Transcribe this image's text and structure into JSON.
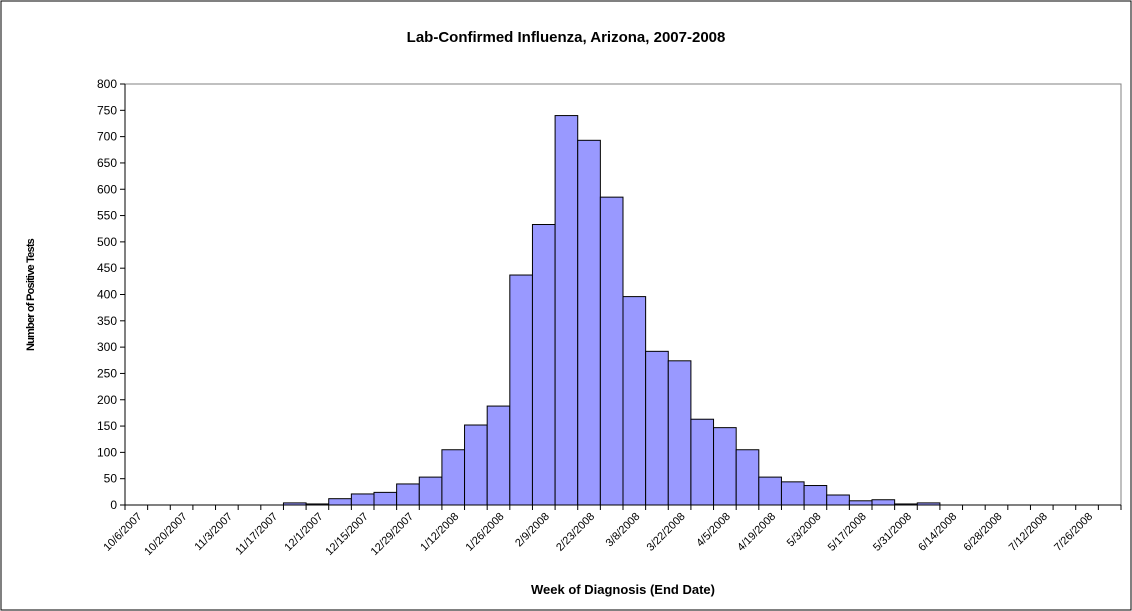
{
  "chart_data": {
    "type": "bar",
    "title": "Lab-Confirmed Influenza, Arizona, 2007-2008",
    "x_label": "Week of Diagnosis (End Date)",
    "y_label": "Number of Positive Tests",
    "categories": [
      "10/6/2007",
      null,
      "10/20/2007",
      null,
      "11/3/2007",
      null,
      "11/17/2007",
      null,
      "12/1/2007",
      null,
      "12/15/2007",
      null,
      "12/29/2007",
      null,
      "1/12/2008",
      null,
      "1/26/2008",
      null,
      "2/9/2008",
      null,
      "2/23/2008",
      null,
      "3/8/2008",
      null,
      "3/22/2008",
      null,
      "4/5/2008",
      null,
      "4/19/2008",
      null,
      "5/3/2008",
      null,
      "5/17/2008",
      null,
      "5/31/2008",
      null,
      "6/14/2008",
      null,
      "6/28/2008",
      null,
      "7/12/2008",
      null,
      "7/26/2008",
      null
    ],
    "values": [
      0,
      0,
      0,
      0,
      0,
      0,
      0,
      4,
      2,
      12,
      21,
      24,
      40,
      53,
      105,
      152,
      188,
      437,
      533,
      740,
      693,
      585,
      396,
      292,
      274,
      163,
      147,
      105,
      53,
      44,
      37,
      19,
      8,
      10,
      2,
      4,
      0,
      0,
      0,
      0,
      0,
      0,
      0,
      0
    ],
    "color": "#9999ff",
    "ylim": [
      0,
      800
    ],
    "yticks": [
      0,
      50,
      100,
      150,
      200,
      250,
      300,
      350,
      400,
      450,
      500,
      550,
      600,
      650,
      700,
      750,
      800
    ],
    "grid": false
  }
}
